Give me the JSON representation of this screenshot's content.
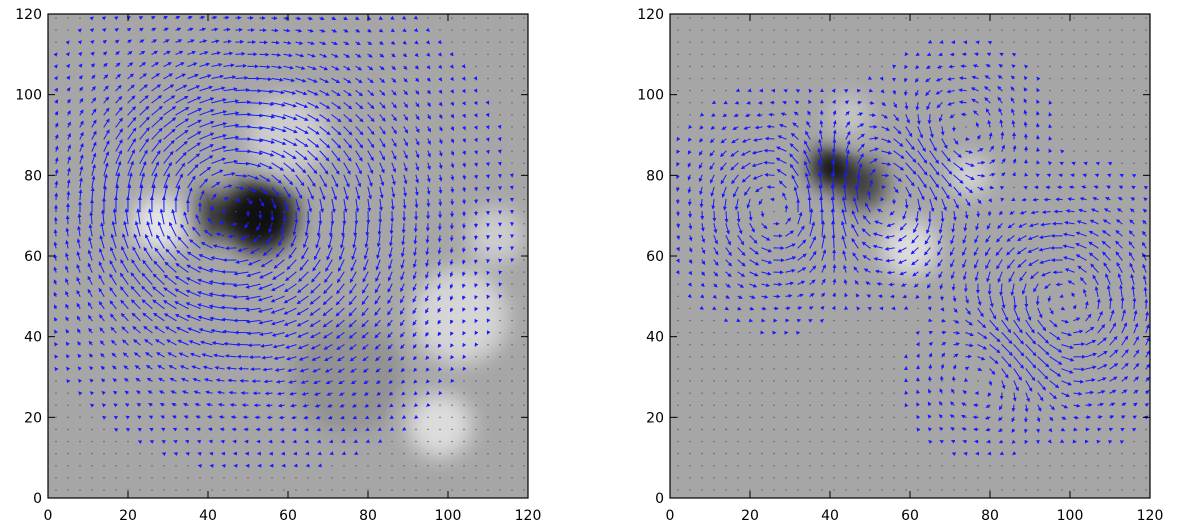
{
  "chart_data": [
    {
      "type": "vector-field",
      "title": "",
      "xlabel": "",
      "ylabel": "",
      "xlim": [
        0,
        120
      ],
      "ylim": [
        0,
        120
      ],
      "xticks": [
        "0",
        "20",
        "40",
        "60",
        "80",
        "100",
        "120"
      ],
      "yticks": [
        "0",
        "20",
        "40",
        "60",
        "80",
        "100",
        "120"
      ],
      "x_tick_values": [
        0,
        20,
        40,
        60,
        80,
        100,
        120
      ],
      "y_tick_values": [
        0,
        20,
        40,
        60,
        80,
        100,
        120
      ],
      "background": "grayscale field",
      "arrow_color": "#1a1aff",
      "vortices": [
        {
          "x": 53,
          "y": 70,
          "radius": 24,
          "strength": 1.0,
          "dir": -1
        },
        {
          "x": 37,
          "y": 72,
          "radius": 16,
          "strength": 0.6,
          "dir": -1
        }
      ],
      "shading": [
        {
          "x": 53,
          "y": 70,
          "r": 9,
          "tone": "dark",
          "alpha": 0.9
        },
        {
          "x": 40,
          "y": 70,
          "r": 6,
          "tone": "dark",
          "alpha": 0.6
        },
        {
          "x": 28,
          "y": 68,
          "r": 7,
          "tone": "light",
          "alpha": 0.8
        },
        {
          "x": 60,
          "y": 90,
          "r": 10,
          "tone": "light",
          "alpha": 0.5
        },
        {
          "x": 103,
          "y": 45,
          "r": 12,
          "tone": "light",
          "alpha": 0.6
        },
        {
          "x": 98,
          "y": 18,
          "r": 8,
          "tone": "light",
          "alpha": 0.7
        },
        {
          "x": 112,
          "y": 65,
          "r": 7,
          "tone": "light",
          "alpha": 0.5
        },
        {
          "x": 75,
          "y": 30,
          "r": 14,
          "tone": "dark",
          "alpha": 0.12
        }
      ]
    },
    {
      "type": "vector-field",
      "title": "",
      "xlabel": "",
      "ylabel": "",
      "xlim": [
        0,
        120
      ],
      "ylim": [
        0,
        120
      ],
      "xticks": [
        "0",
        "20",
        "40",
        "60",
        "80",
        "100",
        "120"
      ],
      "yticks": [
        "0",
        "20",
        "40",
        "60",
        "80",
        "100",
        "120"
      ],
      "x_tick_values": [
        0,
        20,
        40,
        60,
        80,
        100,
        120
      ],
      "y_tick_values": [
        0,
        20,
        40,
        60,
        80,
        100,
        120
      ],
      "background": "grayscale field",
      "arrow_color": "#1a1aff",
      "vortices": [
        {
          "x": 28,
          "y": 72,
          "radius": 12,
          "strength": 1.0,
          "dir": 1
        },
        {
          "x": 52,
          "y": 75,
          "radius": 12,
          "strength": 0.9,
          "dir": -1
        },
        {
          "x": 98,
          "y": 48,
          "radius": 14,
          "strength": 1.0,
          "dir": 1
        },
        {
          "x": 72,
          "y": 90,
          "radius": 10,
          "strength": 0.7,
          "dir": 1
        },
        {
          "x": 80,
          "y": 32,
          "radius": 10,
          "strength": 0.6,
          "dir": -1
        }
      ],
      "shading": [
        {
          "x": 40,
          "y": 82,
          "r": 5,
          "tone": "dark",
          "alpha": 0.9
        },
        {
          "x": 48,
          "y": 78,
          "r": 6,
          "tone": "dark",
          "alpha": 0.6
        },
        {
          "x": 60,
          "y": 62,
          "r": 7,
          "tone": "light",
          "alpha": 0.7
        },
        {
          "x": 75,
          "y": 80,
          "r": 5,
          "tone": "light",
          "alpha": 0.6
        },
        {
          "x": 45,
          "y": 95,
          "r": 5,
          "tone": "light",
          "alpha": 0.4
        }
      ]
    }
  ]
}
